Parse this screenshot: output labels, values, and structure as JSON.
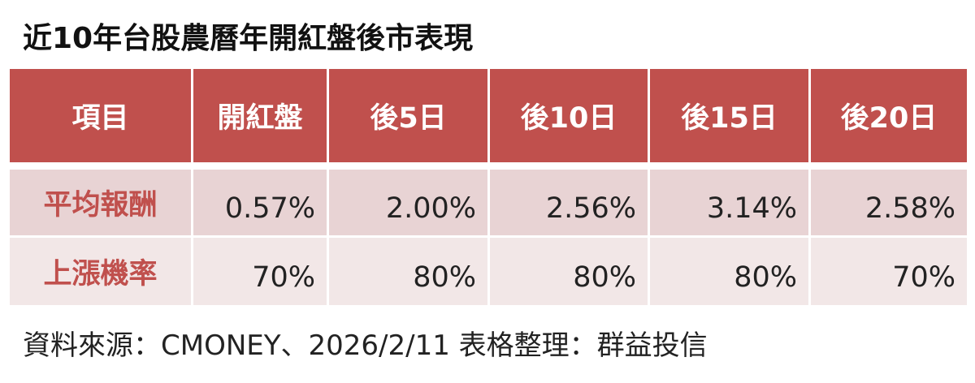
{
  "header": {
    "title": "近10年台股農曆年開紅盤後市表現"
  },
  "table": {
    "columns": [
      "項目",
      "開紅盤",
      "後5日",
      "後10日",
      "後15日",
      "後20日"
    ],
    "rows": [
      [
        "平均報酬",
        "0.57%",
        "2.00%",
        "2.56%",
        "3.14%",
        "2.58%"
      ],
      [
        "上漲機率",
        "70%",
        "80%",
        "80%",
        "80%",
        "70%"
      ]
    ]
  },
  "footer": {
    "source": "資料來源：CMONEY、2026/2/11 表格整理：群益投信"
  }
}
